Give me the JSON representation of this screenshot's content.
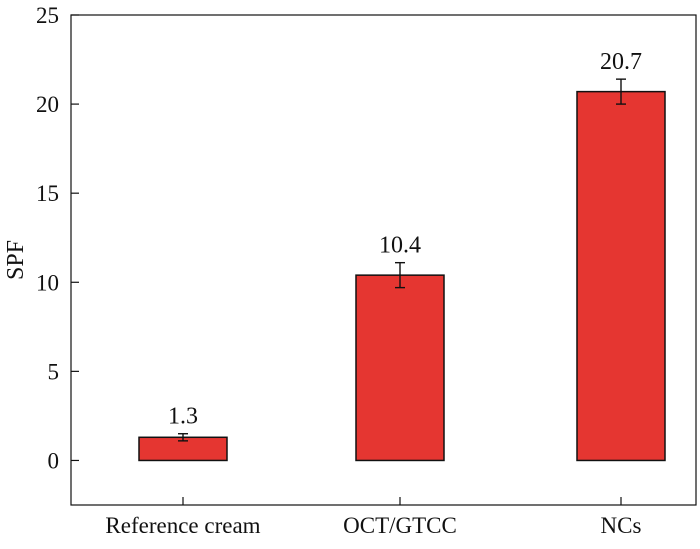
{
  "chart_data": {
    "type": "bar",
    "title": "",
    "xlabel": "",
    "ylabel": "SPF",
    "ylim": [
      -2.5,
      25
    ],
    "yticks": [
      0,
      5,
      10,
      15,
      20,
      25
    ],
    "categories": [
      "Reference cream",
      "OCT/GTCC",
      "NCs"
    ],
    "values": [
      1.3,
      10.4,
      20.7
    ],
    "errors": [
      0.2,
      0.7,
      0.7
    ],
    "data_labels": [
      "1.3",
      "10.4",
      "20.7"
    ],
    "grid": false,
    "legend": "none",
    "colors": {
      "bar_fill": "#e53631",
      "bar_stroke": "#111111",
      "axis": "#111111"
    }
  }
}
